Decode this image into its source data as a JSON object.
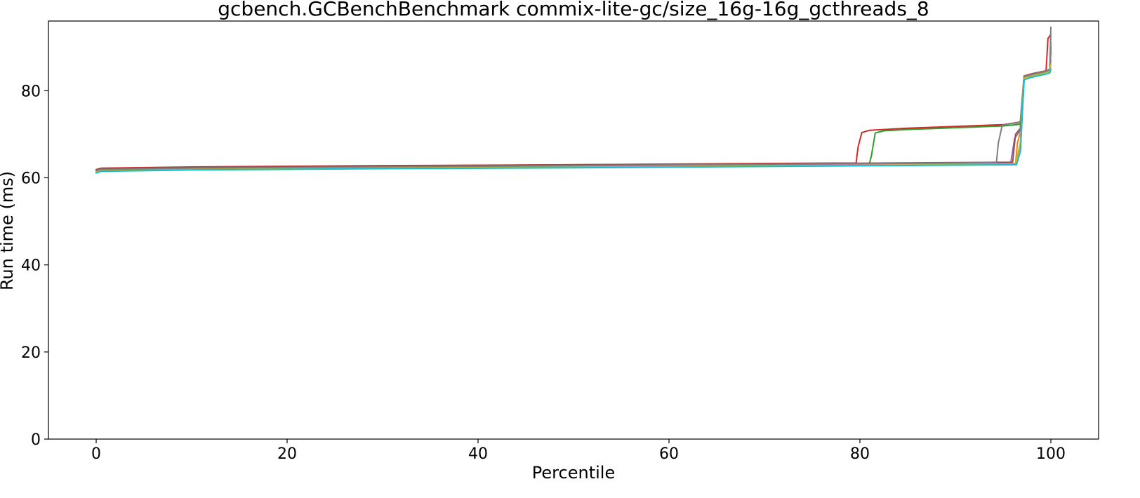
{
  "chart_data": {
    "type": "line",
    "title": "gcbench.GCBenchBenchmark commix-lite-gc/size_16g-16g_gcthreads_8",
    "xlabel": "Percentile",
    "ylabel": "Run time (ms)",
    "xlim": [
      -5,
      105
    ],
    "ylim": [
      0,
      96
    ],
    "xticks": [
      "0",
      "20",
      "40",
      "60",
      "80",
      "100"
    ],
    "yticks": [
      "0",
      "20",
      "40",
      "60",
      "80"
    ],
    "grid": false,
    "legend": "none",
    "series": [
      {
        "color": "#1f77b4",
        "x": [
          0,
          0.5,
          10,
          30,
          50,
          70,
          90,
          96.3,
          96.8,
          97.2,
          98,
          99.5,
          99.9,
          100
        ],
        "y": [
          61.2,
          61.6,
          61.9,
          62.2,
          62.5,
          62.8,
          63.0,
          63.1,
          66,
          82.6,
          83.2,
          83.9,
          84.2,
          89
        ]
      },
      {
        "color": "#ff7f0e",
        "x": [
          0,
          0.5,
          10,
          30,
          50,
          70,
          90,
          96.3,
          96.5,
          96.8,
          97.2,
          98,
          99.5,
          99.9,
          100
        ],
        "y": [
          61.5,
          61.8,
          62.1,
          62.4,
          62.6,
          62.9,
          63.2,
          63.3,
          68,
          70.5,
          83.0,
          83.5,
          84.2,
          84.6,
          93
        ]
      },
      {
        "color": "#2ca02c",
        "x": [
          0,
          0.5,
          10,
          30,
          50,
          70,
          80,
          81.0,
          81.2,
          81.6,
          82.5,
          85,
          90,
          95,
          96.8,
          97.2,
          98,
          99.5,
          99.9,
          100
        ],
        "y": [
          61.6,
          61.9,
          62.2,
          62.5,
          62.8,
          63.1,
          63.2,
          63.3,
          65,
          70.3,
          70.8,
          71.1,
          71.5,
          71.9,
          72.3,
          83.2,
          83.7,
          84.4,
          84.8,
          87
        ]
      },
      {
        "color": "#d62728",
        "x": [
          0,
          0.5,
          10,
          30,
          50,
          70,
          79.6,
          79.8,
          80.2,
          81,
          85,
          90,
          95,
          96.8,
          97.2,
          98,
          99.5,
          99.7,
          99.9,
          100
        ],
        "y": [
          61.9,
          62.2,
          62.5,
          62.8,
          63.0,
          63.3,
          63.4,
          67,
          70.4,
          70.9,
          71.4,
          71.8,
          72.2,
          72.8,
          83.4,
          83.9,
          84.6,
          92.0,
          92.6,
          93
        ]
      },
      {
        "color": "#9467bd",
        "x": [
          0,
          0.5,
          10,
          30,
          50,
          70,
          90,
          95.8,
          96.2,
          96.8,
          97.2,
          98,
          99.5,
          99.9,
          100
        ],
        "y": [
          61.7,
          62.0,
          62.3,
          62.6,
          62.9,
          63.1,
          63.4,
          63.5,
          69,
          71.0,
          83.1,
          83.6,
          84.3,
          84.7,
          91
        ]
      },
      {
        "color": "#8c564b",
        "x": [
          0,
          0.5,
          10,
          30,
          50,
          70,
          90,
          96.0,
          96.3,
          96.8,
          97.2,
          98,
          99.5,
          99.9,
          100
        ],
        "y": [
          61.8,
          62.1,
          62.4,
          62.7,
          63.0,
          63.2,
          63.5,
          63.6,
          70,
          71.3,
          83.3,
          83.8,
          84.5,
          84.9,
          90
        ]
      },
      {
        "color": "#e377c2",
        "x": [
          0,
          0.5,
          10,
          30,
          50,
          70,
          90,
          96.3,
          96.8,
          97.2,
          98,
          99.5,
          99.9,
          100
        ],
        "y": [
          61.4,
          61.7,
          62.0,
          62.3,
          62.6,
          62.9,
          63.1,
          63.2,
          67,
          82.8,
          83.3,
          84.0,
          84.4,
          88
        ]
      },
      {
        "color": "#7f7f7f",
        "x": [
          0,
          0.5,
          10,
          30,
          50,
          70,
          90,
          94.3,
          94.5,
          94.9,
          95.5,
          96.8,
          97.2,
          98,
          99.5,
          99.9,
          100
        ],
        "y": [
          61.6,
          61.9,
          62.2,
          62.5,
          62.8,
          63.1,
          63.4,
          63.6,
          68,
          72.0,
          72.4,
          72.7,
          83.3,
          83.8,
          84.5,
          85.0,
          94.6
        ]
      },
      {
        "color": "#bcbd22",
        "x": [
          0,
          0.5,
          10,
          30,
          50,
          70,
          90,
          96.3,
          96.8,
          97.2,
          98,
          99.5,
          99.9,
          100
        ],
        "y": [
          61.3,
          61.6,
          61.9,
          62.2,
          62.4,
          62.7,
          63.0,
          63.1,
          68,
          82.9,
          83.4,
          84.1,
          84.5,
          86
        ]
      },
      {
        "color": "#17becf",
        "x": [
          0,
          0.5,
          10,
          30,
          50,
          70,
          90,
          96.4,
          96.8,
          97.2,
          98,
          99.5,
          99.9,
          100
        ],
        "y": [
          61.1,
          61.5,
          61.8,
          62.1,
          62.3,
          62.6,
          62.9,
          63.0,
          66,
          82.5,
          83.1,
          83.8,
          84.1,
          85
        ]
      }
    ]
  }
}
